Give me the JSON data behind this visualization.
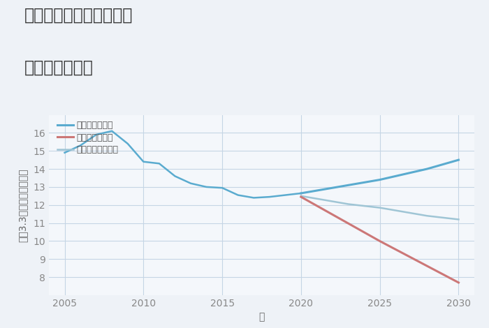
{
  "title_line1": "三重県松阪市上蛸路町の",
  "title_line2": "土地の価格推移",
  "xlabel": "年",
  "ylabel": "平（3.3㎡）単価（万円）",
  "bg_color": "#eef2f7",
  "plot_bg_color": "#f4f7fb",
  "grid_color": "#c5d5e5",
  "xlim": [
    2004,
    2031
  ],
  "ylim": [
    7,
    17
  ],
  "yticks": [
    8,
    9,
    10,
    11,
    12,
    13,
    14,
    15,
    16
  ],
  "xticks": [
    2005,
    2010,
    2015,
    2020,
    2025,
    2030
  ],
  "good_color": "#5aabcf",
  "bad_color": "#cc7777",
  "normal_color": "#9fc5d5",
  "good_label": "グッドシナリオ",
  "bad_label": "バッドシナリオ",
  "normal_label": "ノーマルシナリオ",
  "historical_years": [
    2005,
    2006,
    2007,
    2008,
    2009,
    2010,
    2011,
    2012,
    2013,
    2014,
    2015,
    2016,
    2017,
    2018,
    2019,
    2020
  ],
  "historical_values": [
    14.9,
    15.3,
    15.9,
    16.1,
    15.4,
    14.4,
    14.3,
    13.6,
    13.2,
    13.0,
    12.95,
    12.55,
    12.4,
    12.45,
    12.55,
    12.65
  ],
  "good_years": [
    2020,
    2021,
    2022,
    2023,
    2024,
    2025,
    2026,
    2027,
    2028,
    2029,
    2030
  ],
  "good_values": [
    12.65,
    12.8,
    12.95,
    13.1,
    13.25,
    13.4,
    13.6,
    13.8,
    14.0,
    14.25,
    14.5
  ],
  "bad_years": [
    2020,
    2025,
    2030
  ],
  "bad_values": [
    12.45,
    10.0,
    7.7
  ],
  "normal_years": [
    2020,
    2021,
    2022,
    2023,
    2024,
    2025,
    2026,
    2027,
    2028,
    2029,
    2030
  ],
  "normal_values": [
    12.5,
    12.35,
    12.2,
    12.05,
    11.95,
    11.85,
    11.7,
    11.55,
    11.4,
    11.3,
    11.2
  ],
  "title_fontsize": 17,
  "legend_fontsize": 9,
  "tick_fontsize": 10,
  "axis_label_fontsize": 10
}
